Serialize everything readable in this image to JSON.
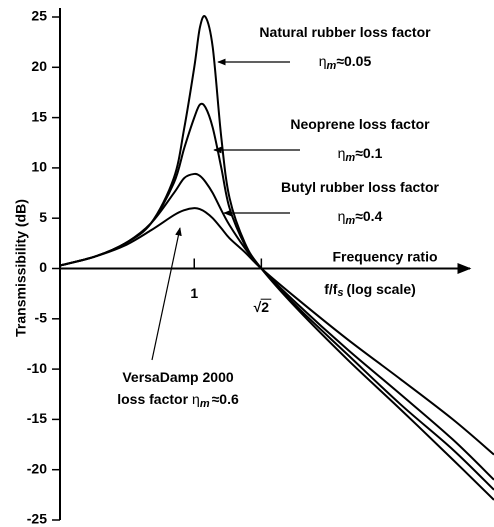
{
  "chart_data": {
    "type": "line",
    "ylabel": "Transmissibility (dB)",
    "xlabel": {
      "line1": "Frequency ratio",
      "main": "f/f",
      "sub": "s",
      "rest": "(log scale)"
    },
    "log_x": true,
    "xlim": [
      0.5,
      4.7
    ],
    "ylim": [
      -25,
      25
    ],
    "xticks": [
      1,
      {
        "value": 1.414,
        "label": "√2"
      }
    ],
    "yticks": [
      25,
      20,
      15,
      10,
      5,
      0,
      -5,
      -10,
      -15,
      -20,
      -25
    ],
    "x": [
      0.5,
      0.6,
      0.7,
      0.8,
      0.9,
      0.95,
      1,
      1.03,
      1.06,
      1.1,
      1.15,
      1.2,
      1.3,
      1.414,
      1.7,
      2.2,
      2.9,
      3.8,
      4.7
    ],
    "series": [
      {
        "name": "Natural rubber",
        "color": "#000000",
        "values": [
          0.3,
          1.2,
          2.5,
          4.5,
          9,
          14,
          20,
          24,
          25,
          22,
          13,
          7,
          2.5,
          0,
          -4,
          -9,
          -14,
          -19,
          -23
        ]
      },
      {
        "name": "Neoprene",
        "color": "#000000",
        "values": [
          0.3,
          1.2,
          2.5,
          4.5,
          8.5,
          12,
          15,
          16.3,
          16,
          14,
          10,
          6,
          2.3,
          0,
          -3.8,
          -8.5,
          -13.5,
          -18,
          -22
        ]
      },
      {
        "name": "Butyl rubber",
        "color": "#000000",
        "values": [
          0.3,
          1.2,
          2.5,
          4.5,
          7.5,
          9,
          9.4,
          9.2,
          8.6,
          7.5,
          5.8,
          4.3,
          2,
          0,
          -3.5,
          -8,
          -12.5,
          -17,
          -21
        ]
      },
      {
        "name": "VersaDamp 2000",
        "color": "#000000",
        "values": [
          0.3,
          1.2,
          2.3,
          3.8,
          5.3,
          5.8,
          6,
          5.9,
          5.6,
          5,
          4,
          3,
          1.6,
          0,
          -3,
          -7,
          -11,
          -15,
          -18.5
        ]
      }
    ],
    "annotations": [
      {
        "lines": [
          "Natural rubber loss factor"
        ],
        "symbol": "η",
        "subscript": "m",
        "value": "≈0.05"
      },
      {
        "lines": [
          "Neoprene loss factor"
        ],
        "symbol": "η",
        "subscript": "m",
        "value": "≈0.1"
      },
      {
        "lines": [
          "Butyl rubber loss factor"
        ],
        "symbol": "η",
        "subscript": "m",
        "value": "≈0.4"
      },
      {
        "lines": [
          "VersaDamp 2000",
          "loss factor"
        ],
        "symbol": "η",
        "subscript": "m",
        "value": "≈0.6"
      }
    ]
  }
}
